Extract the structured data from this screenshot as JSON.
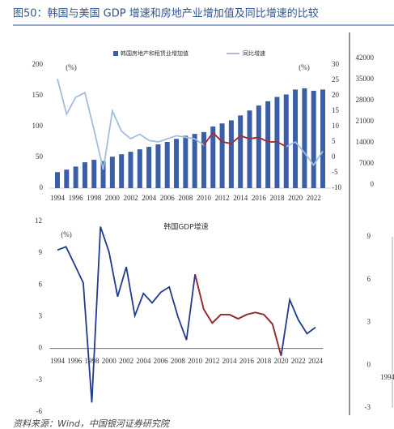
{
  "title": "图50：韩国与美国 GDP 增速和房地产业增加值及同比增速的比较",
  "source": "资料来源：Wind，中国银河证券研究院",
  "chart_data": [
    {
      "type": "bar",
      "categories": [
        "1994",
        null,
        "1996",
        null,
        "1998",
        null,
        "2000",
        null,
        "2002",
        null,
        "2004",
        null,
        "2006",
        null,
        "2008",
        null,
        "2010",
        null,
        "2012",
        null,
        "2014",
        null,
        "2016",
        null,
        "2018",
        null,
        "2020",
        null,
        "2022",
        null
      ],
      "series": [
        {
          "name": "韩国房地产和租赁业增加值",
          "type": "bar",
          "color": "#3a5ea8",
          "values": [
            26,
            30,
            35,
            42,
            46,
            44,
            51,
            55,
            59,
            63,
            67,
            71,
            75,
            80,
            85,
            88,
            91,
            100,
            105,
            110,
            118,
            126,
            134,
            141,
            148,
            152,
            160,
            162,
            158,
            160
          ]
        },
        {
          "name": "同比增速",
          "type": "line",
          "axis": "y2",
          "color": "#a3bde0",
          "values": [
            25.5,
            14,
            19.5,
            21,
            9,
            -4,
            15,
            8.5,
            6,
            7.5,
            5.5,
            5,
            6,
            7,
            6.5,
            6,
            4,
            8,
            5,
            4.5,
            7,
            6,
            6.5,
            5,
            5,
            3.5,
            5,
            1.5,
            -2.5,
            2
          ]
        }
      ],
      "highlight": {
        "range": [
          16,
          25
        ],
        "color": "#9e2a2b"
      },
      "ylim": [
        0,
        200
      ],
      "yticks": [
        0,
        50,
        100,
        150,
        200
      ],
      "y2lim": [
        -10,
        30
      ],
      "y2ticks": [
        -10,
        -5,
        0,
        5,
        10,
        15,
        20,
        25,
        30
      ],
      "annotations": [
        "(%)",
        "(%)"
      ]
    },
    {
      "type": "line",
      "title": "韩国GDP增速",
      "categories": [
        "1994",
        null,
        "1996",
        null,
        "1998",
        null,
        "2000",
        null,
        "2002",
        null,
        "2004",
        null,
        "2006",
        null,
        "2008",
        null,
        "2010",
        null,
        "2012",
        null,
        "2014",
        null,
        "2016",
        null,
        "2018",
        null,
        "2020",
        null,
        "2022",
        null,
        "2024"
      ],
      "series": [
        {
          "color": "#1f3a8f",
          "values": [
            9.3,
            9.6,
            7.9,
            6.2,
            -5.1,
            11.5,
            9.1,
            4.9,
            7.7,
            3.1,
            5.2,
            4.3,
            5.3,
            5.8,
            3.0,
            0.8,
            7.0,
            3.7,
            2.4,
            3.2,
            3.2,
            2.8,
            3.2,
            3.4,
            3.2,
            2.3,
            -0.7,
            4.6,
            2.7,
            1.4,
            2.0
          ]
        }
      ],
      "highlight": {
        "range": [
          16,
          26
        ],
        "color": "#9e2a2b"
      },
      "ylim": [
        -6,
        12
      ],
      "yticks": [
        -6,
        -3,
        0,
        3,
        6,
        9,
        12
      ],
      "annotations": [
        "(%)"
      ]
    },
    {
      "type": "line",
      "ylim": [
        0,
        42000
      ],
      "yticks": [
        0,
        7000,
        14000,
        21000,
        28000,
        35000,
        42000
      ]
    },
    {
      "type": "line",
      "categories": [
        "1994"
      ],
      "ylim": [
        -3,
        9
      ],
      "yticks": [
        -3,
        0,
        3,
        6,
        9
      ]
    }
  ]
}
